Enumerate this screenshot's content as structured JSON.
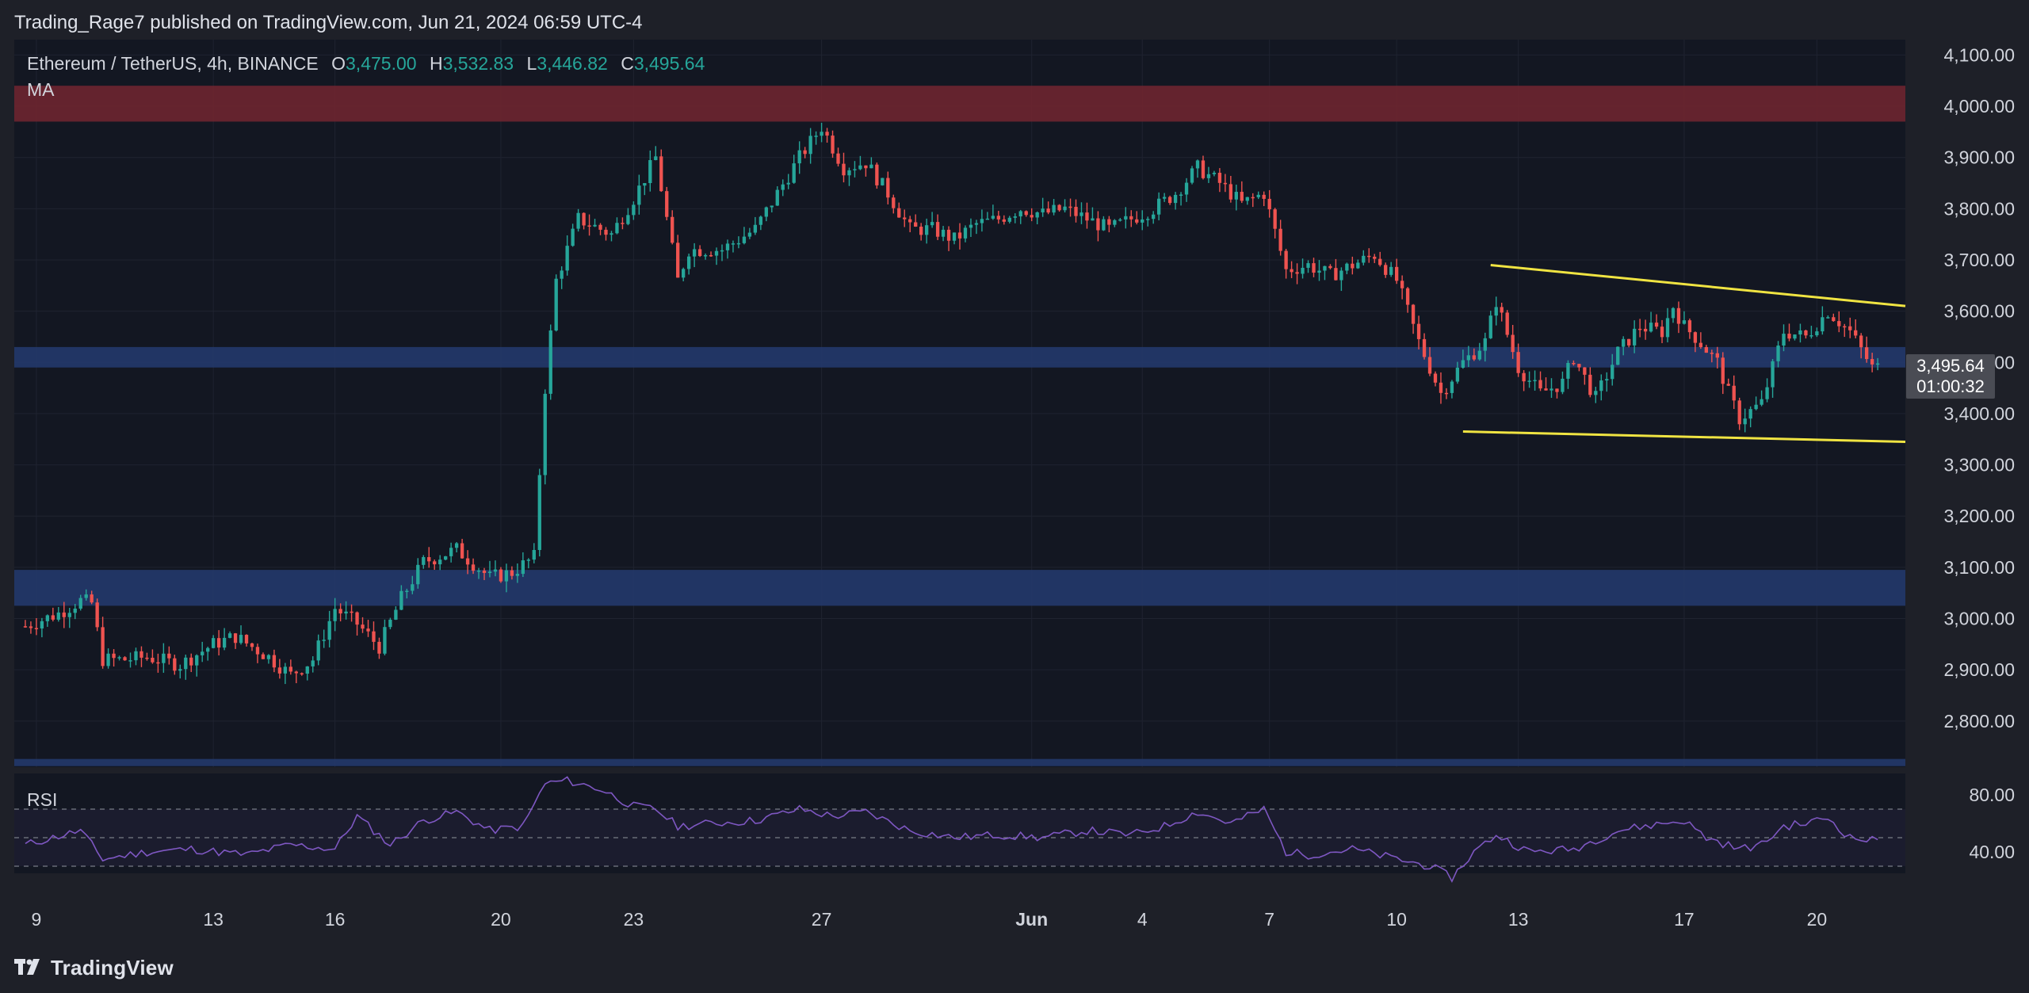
{
  "header": {
    "publisher_line": "Trading_Rage7 published on TradingView.com, Jun 21, 2024 06:59 UTC-4"
  },
  "legend": {
    "symbol": "Ethereum / TetherUS, 4h, BINANCE",
    "open_label": "O",
    "open": "3,475.00",
    "high_label": "H",
    "high": "3,532.83",
    "low_label": "L",
    "low": "3,446.82",
    "close_label": "C",
    "close": "3,495.64",
    "ma": "MA"
  },
  "rsi_panel": {
    "label": "RSI",
    "ticks": [
      "80.00",
      "40.00"
    ]
  },
  "last_price": {
    "price": "3,495.64",
    "countdown": "01:00:32"
  },
  "footer": {
    "brand": "TradingView",
    "logo": "tradingview-logo-icon"
  },
  "colors": {
    "background": "#1e2028",
    "up": "#26a69a",
    "down": "#ef5350",
    "resistance_zone": "#6e2530",
    "support_zone": "#23396b",
    "trendline": "#f0e442",
    "rsi_line": "#7e57c2"
  },
  "chart_data": {
    "type": "candlestick",
    "symbol": "ETH/USDT",
    "interval": "4h",
    "y_ticks": [
      "4,100.00",
      "4,000.00",
      "3,900.00",
      "3,800.00",
      "3,700.00",
      "3,600.00",
      "3,500.00",
      "3,400.00",
      "3,300.00",
      "3,200.00",
      "3,100.00",
      "3,000.00",
      "2,900.00",
      "2,800.00"
    ],
    "y_tick_values": [
      4100,
      4000,
      3900,
      3800,
      3700,
      3600,
      3500,
      3400,
      3300,
      3200,
      3100,
      3000,
      2900,
      2800
    ],
    "ylim": [
      2710,
      4130
    ],
    "x_ticks": [
      "9",
      "13",
      "16",
      "20",
      "23",
      "27",
      "Jun",
      "4",
      "7",
      "10",
      "13",
      "17",
      "20"
    ],
    "x_tick_positions": [
      2,
      34,
      56,
      86,
      110,
      144,
      182,
      202,
      225,
      248,
      270,
      300,
      324
    ],
    "x_range": [
      -2,
      340
    ],
    "zones": [
      {
        "name": "resistance",
        "from": 3970,
        "to": 4040
      },
      {
        "name": "support-upper",
        "from": 3490,
        "to": 3530
      },
      {
        "name": "support-lower",
        "from": 3025,
        "to": 3095
      },
      {
        "name": "support-bottom-edge",
        "from": 2712,
        "to": 2726
      }
    ],
    "trendlines": [
      {
        "name": "upper-wedge",
        "x1": 265,
        "y1": 3690,
        "x2": 340,
        "y2": 3610
      },
      {
        "name": "lower-wedge",
        "x1": 260,
        "y1": 3365,
        "x2": 340,
        "y2": 3345
      }
    ],
    "closes_anchors": [
      [
        0,
        2985
      ],
      [
        6,
        3010
      ],
      [
        10,
        3035
      ],
      [
        12,
        3030
      ],
      [
        14,
        2920
      ],
      [
        18,
        2920
      ],
      [
        22,
        2925
      ],
      [
        28,
        2910
      ],
      [
        34,
        2950
      ],
      [
        38,
        2965
      ],
      [
        44,
        2925
      ],
      [
        48,
        2890
      ],
      [
        52,
        2920
      ],
      [
        56,
        3020
      ],
      [
        60,
        2990
      ],
      [
        64,
        2945
      ],
      [
        68,
        3040
      ],
      [
        72,
        3110
      ],
      [
        78,
        3135
      ],
      [
        84,
        3080
      ],
      [
        88,
        3090
      ],
      [
        92,
        3120
      ],
      [
        94,
        3450
      ],
      [
        96,
        3660
      ],
      [
        100,
        3780
      ],
      [
        106,
        3750
      ],
      [
        110,
        3820
      ],
      [
        114,
        3900
      ],
      [
        116,
        3780
      ],
      [
        118,
        3660
      ],
      [
        120,
        3720
      ],
      [
        126,
        3720
      ],
      [
        132,
        3760
      ],
      [
        136,
        3830
      ],
      [
        140,
        3900
      ],
      [
        144,
        3960
      ],
      [
        148,
        3880
      ],
      [
        152,
        3890
      ],
      [
        156,
        3830
      ],
      [
        160,
        3760
      ],
      [
        164,
        3760
      ],
      [
        168,
        3740
      ],
      [
        172,
        3770
      ],
      [
        176,
        3780
      ],
      [
        180,
        3800
      ],
      [
        184,
        3790
      ],
      [
        188,
        3800
      ],
      [
        192,
        3780
      ],
      [
        196,
        3760
      ],
      [
        200,
        3780
      ],
      [
        204,
        3800
      ],
      [
        208,
        3830
      ],
      [
        212,
        3880
      ],
      [
        216,
        3850
      ],
      [
        220,
        3810
      ],
      [
        224,
        3830
      ],
      [
        228,
        3680
      ],
      [
        232,
        3690
      ],
      [
        236,
        3670
      ],
      [
        240,
        3690
      ],
      [
        244,
        3710
      ],
      [
        248,
        3660
      ],
      [
        252,
        3540
      ],
      [
        256,
        3440
      ],
      [
        260,
        3500
      ],
      [
        264,
        3540
      ],
      [
        266,
        3620
      ],
      [
        270,
        3490
      ],
      [
        274,
        3440
      ],
      [
        278,
        3460
      ],
      [
        280,
        3510
      ],
      [
        284,
        3430
      ],
      [
        288,
        3520
      ],
      [
        292,
        3570
      ],
      [
        296,
        3560
      ],
      [
        298,
        3610
      ],
      [
        300,
        3570
      ],
      [
        302,
        3550
      ],
      [
        306,
        3500
      ],
      [
        308,
        3440
      ],
      [
        310,
        3390
      ],
      [
        314,
        3420
      ],
      [
        318,
        3560
      ],
      [
        322,
        3550
      ],
      [
        326,
        3600
      ],
      [
        330,
        3560
      ],
      [
        334,
        3490
      ]
    ],
    "rsi": {
      "ylim": [
        25,
        95
      ],
      "upper_band": 70,
      "lower_band": 30,
      "mid_band": 50,
      "anchors": [
        [
          0,
          45
        ],
        [
          10,
          55
        ],
        [
          14,
          35
        ],
        [
          22,
          40
        ],
        [
          30,
          42
        ],
        [
          40,
          38
        ],
        [
          48,
          45
        ],
        [
          56,
          42
        ],
        [
          60,
          65
        ],
        [
          66,
          45
        ],
        [
          72,
          62
        ],
        [
          78,
          68
        ],
        [
          84,
          55
        ],
        [
          90,
          58
        ],
        [
          94,
          88
        ],
        [
          98,
          90
        ],
        [
          104,
          84
        ],
        [
          110,
          72
        ],
        [
          114,
          70
        ],
        [
          118,
          58
        ],
        [
          124,
          60
        ],
        [
          132,
          62
        ],
        [
          140,
          70
        ],
        [
          146,
          65
        ],
        [
          152,
          68
        ],
        [
          160,
          55
        ],
        [
          168,
          50
        ],
        [
          176,
          52
        ],
        [
          184,
          50
        ],
        [
          192,
          55
        ],
        [
          200,
          52
        ],
        [
          206,
          58
        ],
        [
          212,
          68
        ],
        [
          218,
          60
        ],
        [
          224,
          70
        ],
        [
          228,
          40
        ],
        [
          232,
          38
        ],
        [
          240,
          42
        ],
        [
          248,
          35
        ],
        [
          254,
          30
        ],
        [
          258,
          22
        ],
        [
          262,
          40
        ],
        [
          266,
          52
        ],
        [
          272,
          40
        ],
        [
          280,
          42
        ],
        [
          288,
          55
        ],
        [
          296,
          60
        ],
        [
          300,
          62
        ],
        [
          304,
          50
        ],
        [
          310,
          42
        ],
        [
          314,
          45
        ],
        [
          318,
          58
        ],
        [
          322,
          60
        ],
        [
          326,
          64
        ],
        [
          330,
          50
        ],
        [
          334,
          48
        ]
      ]
    }
  }
}
